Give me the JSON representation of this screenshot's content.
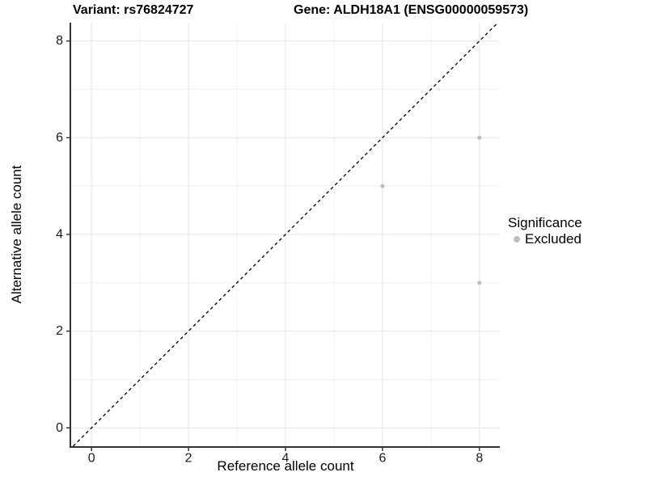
{
  "chart_data": {
    "type": "scatter",
    "title_variant": "Variant: rs76824727",
    "title_gene": "Gene: ALDH18A1 (ENSG00000059573)",
    "xlabel": "Reference allele count",
    "ylabel": "Alternative allele count",
    "x_ticks": [
      0,
      2,
      4,
      6,
      8
    ],
    "y_ticks": [
      0,
      2,
      4,
      6,
      8
    ],
    "x_minor": [
      1,
      3,
      5,
      7
    ],
    "y_minor": [
      1,
      3,
      5,
      7
    ],
    "xlim": [
      -0.42,
      8.42
    ],
    "ylim": [
      -0.38,
      8.38
    ],
    "grid": "major+minor",
    "identity_line": {
      "style": "dashed",
      "from": [
        -0.38,
        -0.38
      ],
      "to": [
        8.38,
        8.38
      ]
    },
    "series": [
      {
        "name": "Excluded",
        "color": "#bebebe",
        "points": [
          [
            6,
            5
          ],
          [
            8,
            6
          ],
          [
            8,
            3
          ]
        ]
      }
    ],
    "legend": {
      "title": "Significance",
      "position": "right",
      "items": [
        {
          "label": "Excluded",
          "color": "#bebebe",
          "marker": "dot-icon"
        }
      ]
    }
  },
  "colors": {
    "background": "#ffffff",
    "grid_major": "#e4e4e4",
    "grid_minor": "#f2f2f2",
    "axis_line": "#333333",
    "tick_text": "#1a1a1a",
    "identity_line": "#000000",
    "point": "#bebebe"
  }
}
